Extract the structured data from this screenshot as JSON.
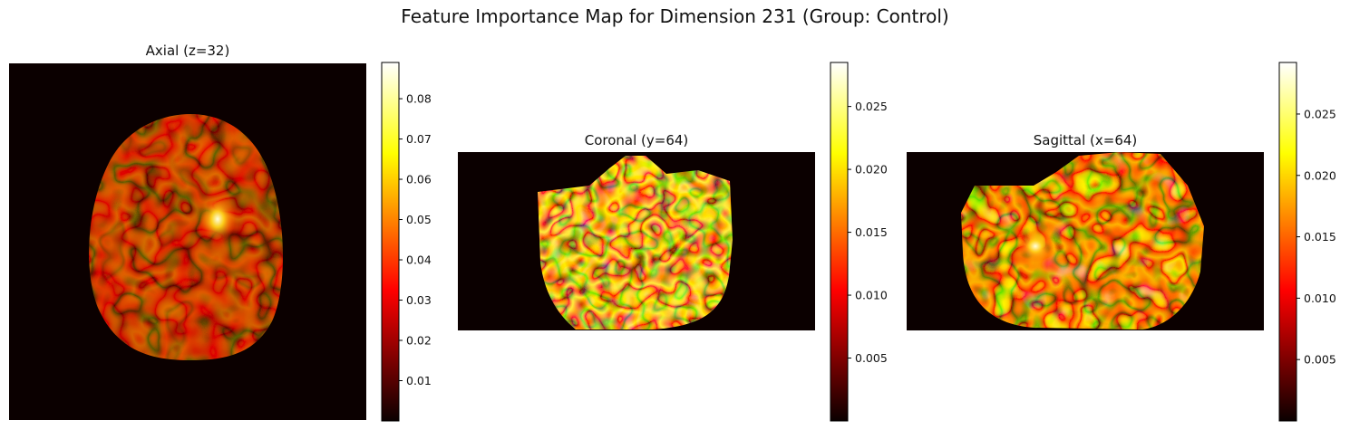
{
  "figure": {
    "title": "Feature Importance Map for Dimension 231 (Group: Control)"
  },
  "chart_data": [
    {
      "type": "heatmap",
      "title": "Axial (z=32)",
      "colormap": "hot",
      "axes": "off",
      "colorbar": {
        "range": [
          0.0,
          0.089
        ],
        "ticks": [
          0.01,
          0.02,
          0.03,
          0.04,
          0.05,
          0.06,
          0.07,
          0.08
        ],
        "tick_labels": [
          "0.01",
          "0.02",
          "0.03",
          "0.04",
          "0.05",
          "0.06",
          "0.07",
          "0.08"
        ]
      },
      "peak_value": 0.089
    },
    {
      "type": "heatmap",
      "title": "Coronal (y=64)",
      "colormap": "hot",
      "axes": "off",
      "colorbar": {
        "range": [
          0.0,
          0.0285
        ],
        "ticks": [
          0.005,
          0.01,
          0.015,
          0.02,
          0.025
        ],
        "tick_labels": [
          "0.005",
          "0.010",
          "0.015",
          "0.020",
          "0.025"
        ]
      },
      "peak_value": 0.0285
    },
    {
      "type": "heatmap",
      "title": "Sagittal (x=64)",
      "colormap": "hot",
      "axes": "off",
      "colorbar": {
        "range": [
          0.0,
          0.0292
        ],
        "ticks": [
          0.005,
          0.01,
          0.015,
          0.02,
          0.025
        ],
        "tick_labels": [
          "0.005",
          "0.010",
          "0.015",
          "0.020",
          "0.025"
        ]
      },
      "peak_value": 0.0292
    }
  ]
}
